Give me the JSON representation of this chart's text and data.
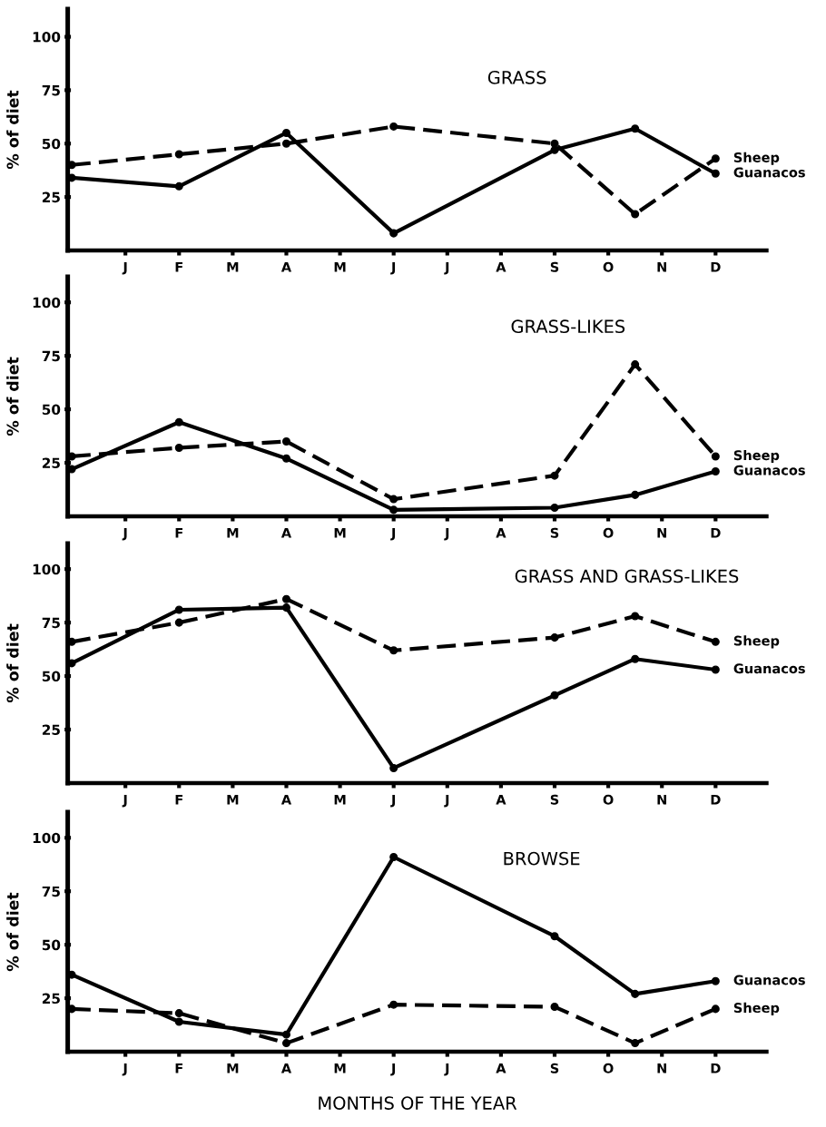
{
  "chart_data": [
    {
      "type": "line",
      "title": "GRASS",
      "ylabel": "% of diet",
      "categories": [
        null,
        null,
        "J",
        null,
        "F",
        null,
        "M",
        null,
        "A",
        null,
        "M",
        null,
        "J",
        null,
        "J",
        null,
        "A",
        null,
        "S",
        null,
        "O",
        null,
        "N",
        null,
        "D"
      ],
      "ylim": [
        0,
        113
      ],
      "yticks": [
        25,
        50,
        75,
        100
      ],
      "marker": "circle",
      "legend": false,
      "series": [
        {
          "name": "Sheep",
          "color": "#000000",
          "line_style": "dashed",
          "values": [
            40,
            null,
            null,
            null,
            45,
            null,
            null,
            null,
            50,
            null,
            null,
            null,
            58,
            null,
            null,
            null,
            null,
            null,
            50,
            null,
            null,
            17,
            null,
            null,
            43
          ]
        },
        {
          "name": "Guanacos",
          "color": "#000000",
          "line_style": "solid",
          "values": [
            34,
            null,
            null,
            null,
            30,
            null,
            null,
            null,
            55,
            null,
            null,
            null,
            8,
            null,
            null,
            null,
            null,
            null,
            47,
            null,
            null,
            57,
            null,
            null,
            36
          ]
        }
      ]
    },
    {
      "type": "line",
      "title": "GRASS-LIKES",
      "ylabel": "% of diet",
      "categories": [
        null,
        null,
        "J",
        null,
        "F",
        null,
        "M",
        null,
        "A",
        null,
        "M",
        null,
        "J",
        null,
        "J",
        null,
        "A",
        null,
        "S",
        null,
        "O",
        null,
        "N",
        null,
        "D"
      ],
      "ylim": [
        0,
        112
      ],
      "yticks": [
        25,
        50,
        75,
        100
      ],
      "marker": "circle",
      "legend": false,
      "series": [
        {
          "name": "Sheep",
          "color": "#000000",
          "line_style": "dashed",
          "values": [
            28,
            null,
            null,
            null,
            32,
            null,
            null,
            null,
            35,
            null,
            null,
            null,
            8,
            null,
            null,
            null,
            null,
            null,
            19,
            null,
            null,
            71,
            null,
            null,
            28
          ]
        },
        {
          "name": "Guanacos",
          "color": "#000000",
          "line_style": "solid",
          "values": [
            22,
            null,
            null,
            null,
            44,
            null,
            null,
            null,
            27,
            null,
            null,
            null,
            3,
            null,
            null,
            null,
            null,
            null,
            4,
            null,
            null,
            10,
            null,
            null,
            21
          ]
        }
      ]
    },
    {
      "type": "line",
      "title": "GRASS AND GRASS-LIKES",
      "ylabel": "% of diet",
      "categories": [
        null,
        null,
        "J",
        null,
        "F",
        null,
        "M",
        null,
        "A",
        null,
        "M",
        null,
        "J",
        null,
        "J",
        null,
        "A",
        null,
        "S",
        null,
        "O",
        null,
        "N",
        null,
        "D"
      ],
      "ylim": [
        0,
        112
      ],
      "yticks": [
        25,
        50,
        75,
        100
      ],
      "marker": "circle",
      "legend": false,
      "series": [
        {
          "name": "Sheep",
          "color": "#000000",
          "line_style": "dashed",
          "values": [
            66,
            null,
            null,
            null,
            75,
            null,
            null,
            null,
            86,
            null,
            null,
            null,
            62,
            null,
            null,
            null,
            null,
            null,
            68,
            null,
            null,
            78,
            null,
            null,
            66
          ]
        },
        {
          "name": "Guanacos",
          "color": "#000000",
          "line_style": "solid",
          "values": [
            56,
            null,
            null,
            null,
            81,
            null,
            null,
            null,
            82,
            null,
            null,
            null,
            7,
            null,
            null,
            null,
            null,
            null,
            41,
            null,
            null,
            58,
            null,
            null,
            53
          ]
        }
      ]
    },
    {
      "type": "line",
      "title": "BROWSE",
      "ylabel": "% of diet",
      "xlabel": "MONTHS OF THE YEAR",
      "categories": [
        null,
        null,
        "J",
        null,
        "F",
        null,
        "M",
        null,
        "A",
        null,
        "M",
        null,
        "J",
        null,
        "J",
        null,
        "A",
        null,
        "S",
        null,
        "O",
        null,
        "N",
        null,
        "D"
      ],
      "ylim": [
        0,
        112
      ],
      "yticks": [
        25,
        50,
        75,
        100
      ],
      "marker": "circle",
      "legend": false,
      "series": [
        {
          "name": "Guanacos",
          "color": "#000000",
          "line_style": "solid",
          "values": [
            36,
            null,
            null,
            null,
            14,
            null,
            null,
            null,
            8,
            null,
            null,
            null,
            91,
            null,
            null,
            null,
            null,
            null,
            54,
            null,
            null,
            27,
            null,
            null,
            33
          ]
        },
        {
          "name": "Sheep",
          "color": "#000000",
          "line_style": "dashed",
          "values": [
            20,
            null,
            null,
            null,
            18,
            null,
            null,
            null,
            4,
            null,
            null,
            null,
            22,
            null,
            null,
            null,
            null,
            null,
            21,
            null,
            null,
            4,
            null,
            null,
            20
          ]
        }
      ]
    }
  ]
}
